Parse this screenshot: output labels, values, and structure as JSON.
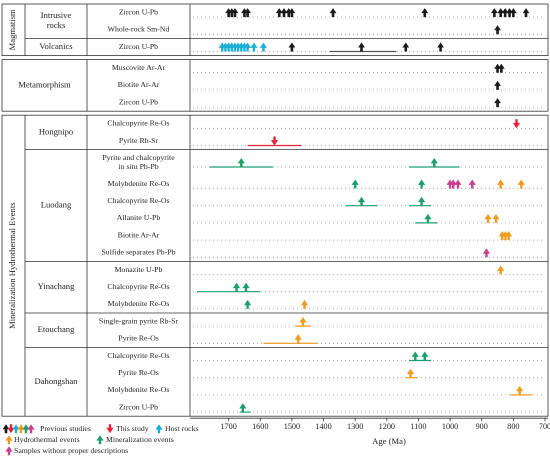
{
  "chart_data": {
    "type": "timeline",
    "xlabel": "Age (Ma)",
    "xlim": [
      1800,
      700
    ],
    "ticks": [
      1700,
      1600,
      1500,
      1400,
      1300,
      1200,
      1100,
      1000,
      900,
      800,
      700
    ],
    "colors": {
      "previous": "#1a1a1a",
      "this_study": "#e8213a",
      "host": "#19b0d4",
      "hydrothermal": "#f19a1c",
      "mineralization": "#1aa06d",
      "no_desc": "#cc3f8f"
    },
    "sections": [
      {
        "label": "Magmatism",
        "groups": [
          {
            "label": "Intrusive rocks",
            "rows": [
              {
                "label": "Zircon U-Pb",
                "marks": [
                  {
                    "kind": "previous",
                    "ages": [
                      1700,
                      1690,
                      1680
                    ]
                  },
                  {
                    "kind": "previous",
                    "ages": [
                      1650,
                      1640
                    ]
                  },
                  {
                    "kind": "previous",
                    "ages": [
                      1540,
                      1525,
                      1510,
                      1500
                    ]
                  },
                  {
                    "kind": "previous",
                    "ages": [
                      1370
                    ]
                  },
                  {
                    "kind": "previous",
                    "ages": [
                      1080
                    ]
                  },
                  {
                    "kind": "previous",
                    "ages": [
                      860
                    ]
                  },
                  {
                    "kind": "previous",
                    "ages": [
                      840,
                      826,
                      812,
                      800
                    ]
                  },
                  {
                    "kind": "previous",
                    "ages": [
                      760
                    ]
                  }
                ]
              },
              {
                "label": "Whole-rock Sm-Nd",
                "marks": [
                  {
                    "kind": "previous",
                    "ages": [
                      850
                    ]
                  }
                ]
              }
            ]
          },
          {
            "label": "Volcanics",
            "rows": [
              {
                "label": "Zircon U-Pb",
                "marks": [
                  {
                    "kind": "host",
                    "ages": [
                      1720,
                      1710,
                      1700,
                      1690,
                      1680,
                      1670
                    ]
                  },
                  {
                    "kind": "host",
                    "ages": [
                      1660,
                      1650,
                      1640
                    ]
                  },
                  {
                    "kind": "host",
                    "ages": [
                      1620
                    ]
                  },
                  {
                    "kind": "host",
                    "ages": [
                      1590
                    ]
                  },
                  {
                    "kind": "previous",
                    "ages": [
                      1500
                    ]
                  },
                  {
                    "kind": "previous",
                    "ages": [
                      1280
                    ],
                    "range": [
                      1380,
                      1170
                    ]
                  },
                  {
                    "kind": "previous",
                    "ages": [
                      1140
                    ]
                  },
                  {
                    "kind": "previous",
                    "ages": [
                      1030
                    ]
                  }
                ]
              }
            ]
          }
        ]
      },
      {
        "label": "",
        "groups": [
          {
            "label": "Metamorphism",
            "rows": [
              {
                "label": "Muscovite Ar-Ar",
                "marks": [
                  {
                    "kind": "previous",
                    "ages": [
                      850,
                      838
                    ]
                  }
                ]
              },
              {
                "label": "Biotite Ar-Ar",
                "marks": [
                  {
                    "kind": "previous",
                    "ages": [
                      850
                    ]
                  }
                ]
              },
              {
                "label": "Zircon U-Pb",
                "marks": [
                  {
                    "kind": "previous",
                    "ages": [
                      850
                    ]
                  }
                ]
              }
            ]
          }
        ]
      },
      {
        "label": "Mineralization Hydrothermal Events",
        "groups": [
          {
            "label": "Hongnipo",
            "rows": [
              {
                "label": "Chalcopyrite Re-Os",
                "marks": [
                  {
                    "kind": "this_study",
                    "ages": [
                      790
                    ]
                  }
                ]
              },
              {
                "label": "Pyrite Rb-Sr",
                "marks": [
                  {
                    "kind": "this_study",
                    "ages": [
                      1555
                    ],
                    "range": [
                      1640,
                      1470
                    ]
                  }
                ]
              }
            ]
          },
          {
            "label": "Luodang",
            "rows": [
              {
                "label": "Pyrite and chalcopyrite in situ Pb-Pb",
                "marks": [
                  {
                    "kind": "mineralization",
                    "ages": [
                      1660
                    ],
                    "range": [
                      1760,
                      1560
                    ]
                  },
                  {
                    "kind": "mineralization",
                    "ages": [
                      1050
                    ],
                    "range": [
                      1130,
                      970
                    ]
                  }
                ]
              },
              {
                "label": "Molybdenite Re-Os",
                "marks": [
                  {
                    "kind": "mineralization",
                    "ages": [
                      1300
                    ]
                  },
                  {
                    "kind": "mineralization",
                    "ages": [
                      1090
                    ]
                  },
                  {
                    "kind": "no_desc",
                    "ages": [
                      1000,
                      990,
                      975
                    ]
                  },
                  {
                    "kind": "no_desc",
                    "ages": [
                      930
                    ]
                  },
                  {
                    "kind": "hydrothermal",
                    "ages": [
                      840
                    ]
                  },
                  {
                    "kind": "hydrothermal",
                    "ages": [
                      775
                    ]
                  }
                ]
              },
              {
                "label": "Chalcopyrite Re-Os",
                "marks": [
                  {
                    "kind": "mineralization",
                    "ages": [
                      1280
                    ],
                    "range": [
                      1330,
                      1230
                    ]
                  },
                  {
                    "kind": "mineralization",
                    "ages": [
                      1090
                    ],
                    "range": [
                      1130,
                      1060
                    ]
                  }
                ]
              },
              {
                "label": "Allanite U-Pb",
                "marks": [
                  {
                    "kind": "mineralization",
                    "ages": [
                      1070
                    ],
                    "range": [
                      1110,
                      1040
                    ]
                  },
                  {
                    "kind": "hydrothermal",
                    "ages": [
                      880
                    ]
                  },
                  {
                    "kind": "hydrothermal",
                    "ages": [
                      855
                    ]
                  }
                ]
              },
              {
                "label": "Biotite Ar-Ar",
                "marks": [
                  {
                    "kind": "hydrothermal",
                    "ages": [
                      835,
                      825,
                      815
                    ]
                  }
                ]
              },
              {
                "label": "Sulfide separates Pb-Pb",
                "marks": [
                  {
                    "kind": "no_desc",
                    "ages": [
                      885
                    ]
                  }
                ]
              }
            ]
          },
          {
            "label": "Yinachang",
            "rows": [
              {
                "label": "Monazite U-Pb",
                "marks": [
                  {
                    "kind": "hydrothermal",
                    "ages": [
                      840
                    ]
                  }
                ]
              },
              {
                "label": "Chalcopyrite Re-Os",
                "marks": [
                  {
                    "kind": "mineralization",
                    "ages": [
                      1675
                    ],
                    "range": [
                      1800,
                      1600
                    ]
                  },
                  {
                    "kind": "mineralization",
                    "ages": [
                      1645
                    ]
                  }
                ]
              },
              {
                "label": "Molybdenite Re-Os",
                "marks": [
                  {
                    "kind": "mineralization",
                    "ages": [
                      1640
                    ]
                  },
                  {
                    "kind": "hydrothermal",
                    "ages": [
                      1460
                    ]
                  }
                ]
              }
            ]
          },
          {
            "label": "Etouchang",
            "rows": [
              {
                "label": "Single-grain pyrite Rb-Sr",
                "marks": [
                  {
                    "kind": "hydrothermal",
                    "ages": [
                      1465
                    ],
                    "range": [
                      1490,
                      1440
                    ]
                  }
                ]
              },
              {
                "label": "Pyrite Re-Os",
                "marks": [
                  {
                    "kind": "hydrothermal",
                    "ages": [
                      1480
                    ],
                    "range": [
                      1590,
                      1420
                    ]
                  }
                ]
              }
            ]
          },
          {
            "label": "Dahongshan",
            "rows": [
              {
                "label": "Chalcopyrite Re-Os",
                "marks": [
                  {
                    "kind": "mineralization",
                    "ages": [
                      1110
                    ],
                    "range": [
                      1130,
                      1060
                    ]
                  },
                  {
                    "kind": "mineralization",
                    "ages": [
                      1080
                    ]
                  }
                ]
              },
              {
                "label": "Pyrite Re-Os",
                "marks": [
                  {
                    "kind": "hydrothermal",
                    "ages": [
                      1125
                    ],
                    "range": [
                      1140,
                      1105
                    ]
                  }
                ]
              },
              {
                "label": "Molybdenite Re-Os",
                "marks": [
                  {
                    "kind": "hydrothermal",
                    "ages": [
                      780
                    ],
                    "range": [
                      810,
                      740
                    ]
                  }
                ]
              },
              {
                "label": "Zircon U-Pb",
                "marks": [
                  {
                    "kind": "mineralization",
                    "ages": [
                      1655
                    ],
                    "range": [
                      1665,
                      1630
                    ]
                  }
                ]
              }
            ]
          }
        ]
      }
    ],
    "legend": [
      {
        "kind": "previous",
        "label": "Previous studies"
      },
      {
        "kind": "this_study",
        "label": "This study"
      },
      {
        "kind": "host",
        "label": "Host rocks"
      },
      {
        "kind": "hydrothermal",
        "label": "Hydrothermal events"
      },
      {
        "kind": "mineralization",
        "label": "Mineralization events"
      },
      {
        "kind": "no_desc",
        "label": "Samples without proper descriptions"
      }
    ]
  }
}
